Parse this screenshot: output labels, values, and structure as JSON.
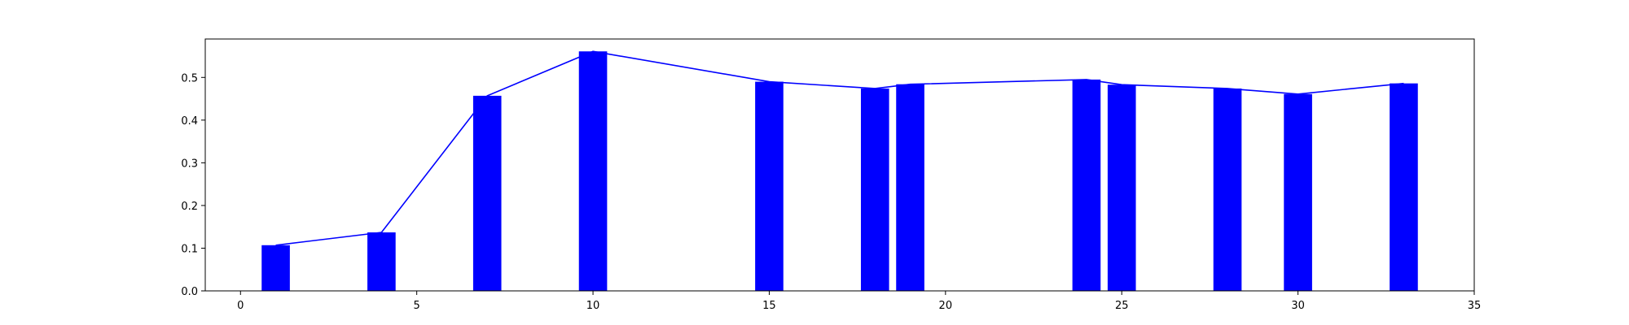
{
  "chart_data": {
    "type": "bar",
    "title": "",
    "xlabel": "",
    "ylabel": "",
    "xlim": [
      -1,
      35
    ],
    "ylim": [
      0,
      0.59
    ],
    "grid": false,
    "x_ticks": [
      0,
      5,
      10,
      15,
      20,
      25,
      30,
      35
    ],
    "y_ticks": [
      0.0,
      0.1,
      0.2,
      0.3,
      0.4,
      0.5
    ],
    "x_tick_labels": [
      "0",
      "5",
      "10",
      "15",
      "20",
      "25",
      "30",
      "35"
    ],
    "y_tick_labels": [
      "0.0",
      "0.1",
      "0.2",
      "0.3",
      "0.4",
      "0.5"
    ],
    "bar_width": 0.8,
    "x": [
      1,
      4,
      7,
      10,
      15,
      18,
      19,
      24,
      25,
      28,
      30,
      33
    ],
    "values": [
      0.107,
      0.137,
      0.457,
      0.561,
      0.49,
      0.474,
      0.484,
      0.495,
      0.483,
      0.474,
      0.461,
      0.486
    ],
    "colors": {
      "bar": "#0000ff",
      "line": "#0000ff",
      "axes": "#000000"
    },
    "overlay_line": true
  }
}
